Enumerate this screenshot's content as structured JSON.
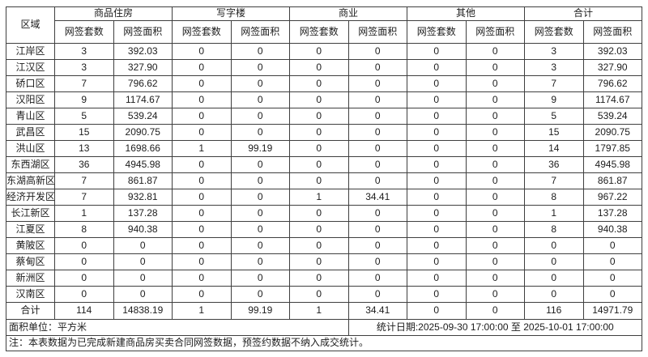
{
  "table": {
    "header": {
      "region": "区域",
      "groups": [
        "商品住房",
        "写字楼",
        "商业",
        "其他",
        "合计"
      ],
      "sub_columns": [
        "网签套数",
        "网签面积"
      ]
    },
    "rows": [
      {
        "region": "江岸区",
        "values": [
          "3",
          "392.03",
          "0",
          "0",
          "0",
          "0",
          "0",
          "0",
          "3",
          "392.03"
        ]
      },
      {
        "region": "江汉区",
        "values": [
          "3",
          "327.90",
          "0",
          "0",
          "0",
          "0",
          "0",
          "0",
          "3",
          "327.90"
        ]
      },
      {
        "region": "硚口区",
        "values": [
          "7",
          "796.62",
          "0",
          "0",
          "0",
          "0",
          "0",
          "0",
          "7",
          "796.62"
        ]
      },
      {
        "region": "汉阳区",
        "values": [
          "9",
          "1174.67",
          "0",
          "0",
          "0",
          "0",
          "0",
          "0",
          "9",
          "1174.67"
        ]
      },
      {
        "region": "青山区",
        "values": [
          "5",
          "539.24",
          "0",
          "0",
          "0",
          "0",
          "0",
          "0",
          "5",
          "539.24"
        ]
      },
      {
        "region": "武昌区",
        "values": [
          "15",
          "2090.75",
          "0",
          "0",
          "0",
          "0",
          "0",
          "0",
          "15",
          "2090.75"
        ]
      },
      {
        "region": "洪山区",
        "values": [
          "13",
          "1698.66",
          "1",
          "99.19",
          "0",
          "0",
          "0",
          "0",
          "14",
          "1797.85"
        ]
      },
      {
        "region": "东西湖区",
        "values": [
          "36",
          "4945.98",
          "0",
          "0",
          "0",
          "0",
          "0",
          "0",
          "36",
          "4945.98"
        ]
      },
      {
        "region": "东湖高新区",
        "values": [
          "7",
          "861.87",
          "0",
          "0",
          "0",
          "0",
          "0",
          "0",
          "7",
          "861.87"
        ]
      },
      {
        "region": "经济开发区",
        "values": [
          "7",
          "932.81",
          "0",
          "0",
          "1",
          "34.41",
          "0",
          "0",
          "8",
          "967.22"
        ]
      },
      {
        "region": "长江新区",
        "values": [
          "1",
          "137.28",
          "0",
          "0",
          "0",
          "0",
          "0",
          "0",
          "1",
          "137.28"
        ]
      },
      {
        "region": "江夏区",
        "values": [
          "8",
          "940.38",
          "0",
          "0",
          "0",
          "0",
          "0",
          "0",
          "8",
          "940.38"
        ]
      },
      {
        "region": "黄陂区",
        "values": [
          "0",
          "0",
          "0",
          "0",
          "0",
          "0",
          "0",
          "0",
          "0",
          "0"
        ]
      },
      {
        "region": "蔡甸区",
        "values": [
          "0",
          "0",
          "0",
          "0",
          "0",
          "0",
          "0",
          "0",
          "0",
          "0"
        ]
      },
      {
        "region": "新洲区",
        "values": [
          "0",
          "0",
          "0",
          "0",
          "0",
          "0",
          "0",
          "0",
          "0",
          "0"
        ]
      },
      {
        "region": "汉南区",
        "values": [
          "0",
          "0",
          "0",
          "0",
          "0",
          "0",
          "0",
          "0",
          "0",
          "0"
        ]
      }
    ],
    "total": {
      "region": "合计",
      "values": [
        "114",
        "14838.19",
        "1",
        "99.19",
        "1",
        "34.41",
        "0",
        "0",
        "116",
        "14971.79"
      ]
    },
    "footer": {
      "area_unit": "面积单位：平方米",
      "stat_period": "统计日期:2025-09-30 17:00:00  至  2025-10-01 17:00:00",
      "note": "注：本表数据为已完成新建商品房买卖合同网签数据，预签约数据不纳入成交统计。"
    },
    "colors": {
      "border": "#3f3f3f",
      "text": "#1c1c1c",
      "background": "#ffffff"
    }
  }
}
